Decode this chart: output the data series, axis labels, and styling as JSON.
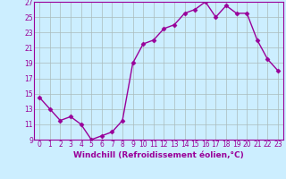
{
  "x": [
    0,
    1,
    2,
    3,
    4,
    5,
    6,
    7,
    8,
    9,
    10,
    11,
    12,
    13,
    14,
    15,
    16,
    17,
    18,
    19,
    20,
    21,
    22,
    23
  ],
  "y": [
    14.5,
    13.0,
    11.5,
    12.0,
    11.0,
    9.0,
    9.5,
    10.0,
    11.5,
    19.0,
    21.5,
    22.0,
    23.5,
    24.0,
    25.5,
    26.0,
    27.0,
    25.0,
    26.5,
    25.5,
    25.5,
    22.0,
    19.5,
    18.0
  ],
  "line_color": "#990099",
  "marker": "D",
  "marker_size": 2.5,
  "bg_color": "#cceeff",
  "grid_color": "#aabbbb",
  "xlabel": "Windchill (Refroidissement éolien,°C)",
  "ylabel": "",
  "ylim": [
    9,
    27
  ],
  "xlim_min": -0.5,
  "xlim_max": 23.5,
  "yticks": [
    9,
    11,
    13,
    15,
    17,
    19,
    21,
    23,
    25,
    27
  ],
  "xticks": [
    0,
    1,
    2,
    3,
    4,
    5,
    6,
    7,
    8,
    9,
    10,
    11,
    12,
    13,
    14,
    15,
    16,
    17,
    18,
    19,
    20,
    21,
    22,
    23
  ],
  "tick_label_fontsize": 5.5,
  "xlabel_fontsize": 6.5,
  "line_width": 1.0
}
